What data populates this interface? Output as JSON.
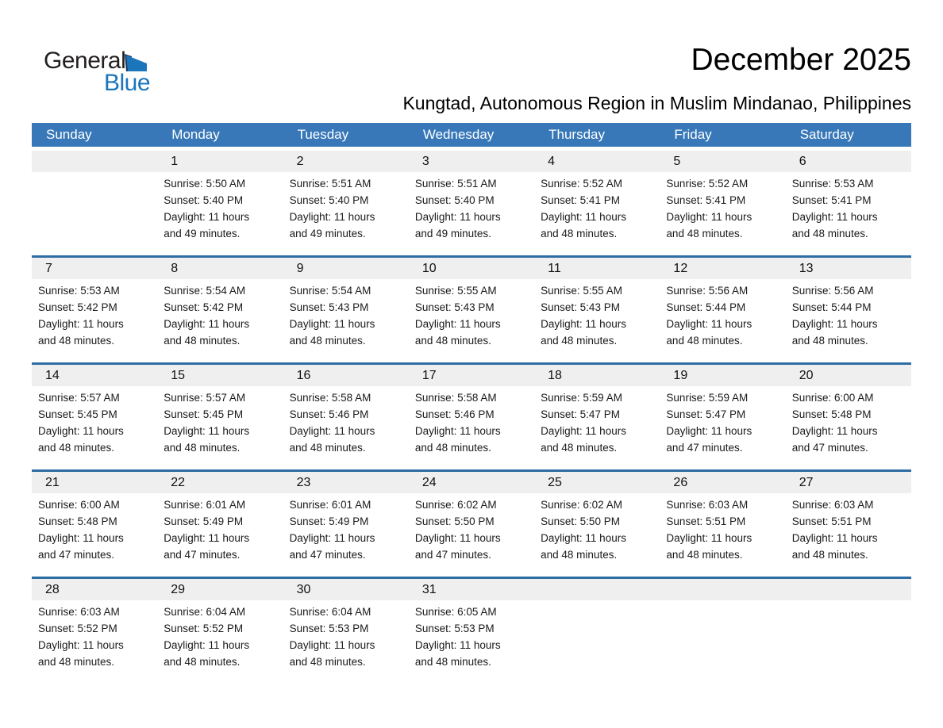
{
  "logo": {
    "general": "General",
    "blue": "Blue"
  },
  "header": {
    "title": "December 2025",
    "subtitle": "Kungtad, Autonomous Region in Muslim Mindanao, Philippines"
  },
  "colors": {
    "header_bg": "#3878B8",
    "separator": "#2E6DA4",
    "daynum_bg": "#EFEFEF",
    "logo_blue": "#1B75BB",
    "logo_dark": "#231F20",
    "logo_navy": "#17355E"
  },
  "calendar": {
    "weekdays": [
      "Sunday",
      "Monday",
      "Tuesday",
      "Wednesday",
      "Thursday",
      "Friday",
      "Saturday"
    ],
    "weeks": [
      [
        null,
        {
          "day": "1",
          "sunrise": "Sunrise: 5:50 AM",
          "sunset": "Sunset: 5:40 PM",
          "daylight1": "Daylight: 11 hours",
          "daylight2": "and 49 minutes."
        },
        {
          "day": "2",
          "sunrise": "Sunrise: 5:51 AM",
          "sunset": "Sunset: 5:40 PM",
          "daylight1": "Daylight: 11 hours",
          "daylight2": "and 49 minutes."
        },
        {
          "day": "3",
          "sunrise": "Sunrise: 5:51 AM",
          "sunset": "Sunset: 5:40 PM",
          "daylight1": "Daylight: 11 hours",
          "daylight2": "and 49 minutes."
        },
        {
          "day": "4",
          "sunrise": "Sunrise: 5:52 AM",
          "sunset": "Sunset: 5:41 PM",
          "daylight1": "Daylight: 11 hours",
          "daylight2": "and 48 minutes."
        },
        {
          "day": "5",
          "sunrise": "Sunrise: 5:52 AM",
          "sunset": "Sunset: 5:41 PM",
          "daylight1": "Daylight: 11 hours",
          "daylight2": "and 48 minutes."
        },
        {
          "day": "6",
          "sunrise": "Sunrise: 5:53 AM",
          "sunset": "Sunset: 5:41 PM",
          "daylight1": "Daylight: 11 hours",
          "daylight2": "and 48 minutes."
        }
      ],
      [
        {
          "day": "7",
          "sunrise": "Sunrise: 5:53 AM",
          "sunset": "Sunset: 5:42 PM",
          "daylight1": "Daylight: 11 hours",
          "daylight2": "and 48 minutes."
        },
        {
          "day": "8",
          "sunrise": "Sunrise: 5:54 AM",
          "sunset": "Sunset: 5:42 PM",
          "daylight1": "Daylight: 11 hours",
          "daylight2": "and 48 minutes."
        },
        {
          "day": "9",
          "sunrise": "Sunrise: 5:54 AM",
          "sunset": "Sunset: 5:43 PM",
          "daylight1": "Daylight: 11 hours",
          "daylight2": "and 48 minutes."
        },
        {
          "day": "10",
          "sunrise": "Sunrise: 5:55 AM",
          "sunset": "Sunset: 5:43 PM",
          "daylight1": "Daylight: 11 hours",
          "daylight2": "and 48 minutes."
        },
        {
          "day": "11",
          "sunrise": "Sunrise: 5:55 AM",
          "sunset": "Sunset: 5:43 PM",
          "daylight1": "Daylight: 11 hours",
          "daylight2": "and 48 minutes."
        },
        {
          "day": "12",
          "sunrise": "Sunrise: 5:56 AM",
          "sunset": "Sunset: 5:44 PM",
          "daylight1": "Daylight: 11 hours",
          "daylight2": "and 48 minutes."
        },
        {
          "day": "13",
          "sunrise": "Sunrise: 5:56 AM",
          "sunset": "Sunset: 5:44 PM",
          "daylight1": "Daylight: 11 hours",
          "daylight2": "and 48 minutes."
        }
      ],
      [
        {
          "day": "14",
          "sunrise": "Sunrise: 5:57 AM",
          "sunset": "Sunset: 5:45 PM",
          "daylight1": "Daylight: 11 hours",
          "daylight2": "and 48 minutes."
        },
        {
          "day": "15",
          "sunrise": "Sunrise: 5:57 AM",
          "sunset": "Sunset: 5:45 PM",
          "daylight1": "Daylight: 11 hours",
          "daylight2": "and 48 minutes."
        },
        {
          "day": "16",
          "sunrise": "Sunrise: 5:58 AM",
          "sunset": "Sunset: 5:46 PM",
          "daylight1": "Daylight: 11 hours",
          "daylight2": "and 48 minutes."
        },
        {
          "day": "17",
          "sunrise": "Sunrise: 5:58 AM",
          "sunset": "Sunset: 5:46 PM",
          "daylight1": "Daylight: 11 hours",
          "daylight2": "and 48 minutes."
        },
        {
          "day": "18",
          "sunrise": "Sunrise: 5:59 AM",
          "sunset": "Sunset: 5:47 PM",
          "daylight1": "Daylight: 11 hours",
          "daylight2": "and 48 minutes."
        },
        {
          "day": "19",
          "sunrise": "Sunrise: 5:59 AM",
          "sunset": "Sunset: 5:47 PM",
          "daylight1": "Daylight: 11 hours",
          "daylight2": "and 47 minutes."
        },
        {
          "day": "20",
          "sunrise": "Sunrise: 6:00 AM",
          "sunset": "Sunset: 5:48 PM",
          "daylight1": "Daylight: 11 hours",
          "daylight2": "and 47 minutes."
        }
      ],
      [
        {
          "day": "21",
          "sunrise": "Sunrise: 6:00 AM",
          "sunset": "Sunset: 5:48 PM",
          "daylight1": "Daylight: 11 hours",
          "daylight2": "and 47 minutes."
        },
        {
          "day": "22",
          "sunrise": "Sunrise: 6:01 AM",
          "sunset": "Sunset: 5:49 PM",
          "daylight1": "Daylight: 11 hours",
          "daylight2": "and 47 minutes."
        },
        {
          "day": "23",
          "sunrise": "Sunrise: 6:01 AM",
          "sunset": "Sunset: 5:49 PM",
          "daylight1": "Daylight: 11 hours",
          "daylight2": "and 47 minutes."
        },
        {
          "day": "24",
          "sunrise": "Sunrise: 6:02 AM",
          "sunset": "Sunset: 5:50 PM",
          "daylight1": "Daylight: 11 hours",
          "daylight2": "and 47 minutes."
        },
        {
          "day": "25",
          "sunrise": "Sunrise: 6:02 AM",
          "sunset": "Sunset: 5:50 PM",
          "daylight1": "Daylight: 11 hours",
          "daylight2": "and 48 minutes."
        },
        {
          "day": "26",
          "sunrise": "Sunrise: 6:03 AM",
          "sunset": "Sunset: 5:51 PM",
          "daylight1": "Daylight: 11 hours",
          "daylight2": "and 48 minutes."
        },
        {
          "day": "27",
          "sunrise": "Sunrise: 6:03 AM",
          "sunset": "Sunset: 5:51 PM",
          "daylight1": "Daylight: 11 hours",
          "daylight2": "and 48 minutes."
        }
      ],
      [
        {
          "day": "28",
          "sunrise": "Sunrise: 6:03 AM",
          "sunset": "Sunset: 5:52 PM",
          "daylight1": "Daylight: 11 hours",
          "daylight2": "and 48 minutes."
        },
        {
          "day": "29",
          "sunrise": "Sunrise: 6:04 AM",
          "sunset": "Sunset: 5:52 PM",
          "daylight1": "Daylight: 11 hours",
          "daylight2": "and 48 minutes."
        },
        {
          "day": "30",
          "sunrise": "Sunrise: 6:04 AM",
          "sunset": "Sunset: 5:53 PM",
          "daylight1": "Daylight: 11 hours",
          "daylight2": "and 48 minutes."
        },
        {
          "day": "31",
          "sunrise": "Sunrise: 6:05 AM",
          "sunset": "Sunset: 5:53 PM",
          "daylight1": "Daylight: 11 hours",
          "daylight2": "and 48 minutes."
        },
        null,
        null,
        null
      ]
    ]
  }
}
